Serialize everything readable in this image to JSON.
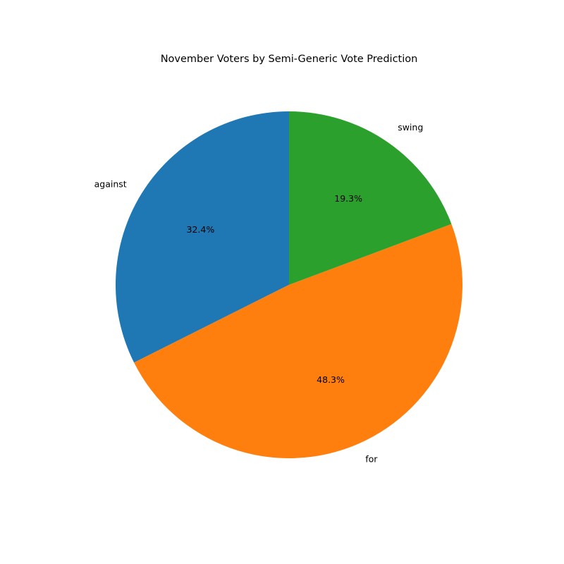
{
  "chart_data": {
    "type": "pie",
    "title": "November Voters by Semi-Generic Vote Prediction",
    "start_angle_deg": 90,
    "direction": "counterclockwise",
    "slices": [
      {
        "label": "against",
        "value": 32.4,
        "pct_text": "32.4%",
        "color": "#1f77b4"
      },
      {
        "label": "for",
        "value": 48.3,
        "pct_text": "48.3%",
        "color": "#ff7f0e"
      },
      {
        "label": "swing",
        "value": 19.3,
        "pct_text": "19.3%",
        "color": "#2ca02c"
      }
    ]
  }
}
